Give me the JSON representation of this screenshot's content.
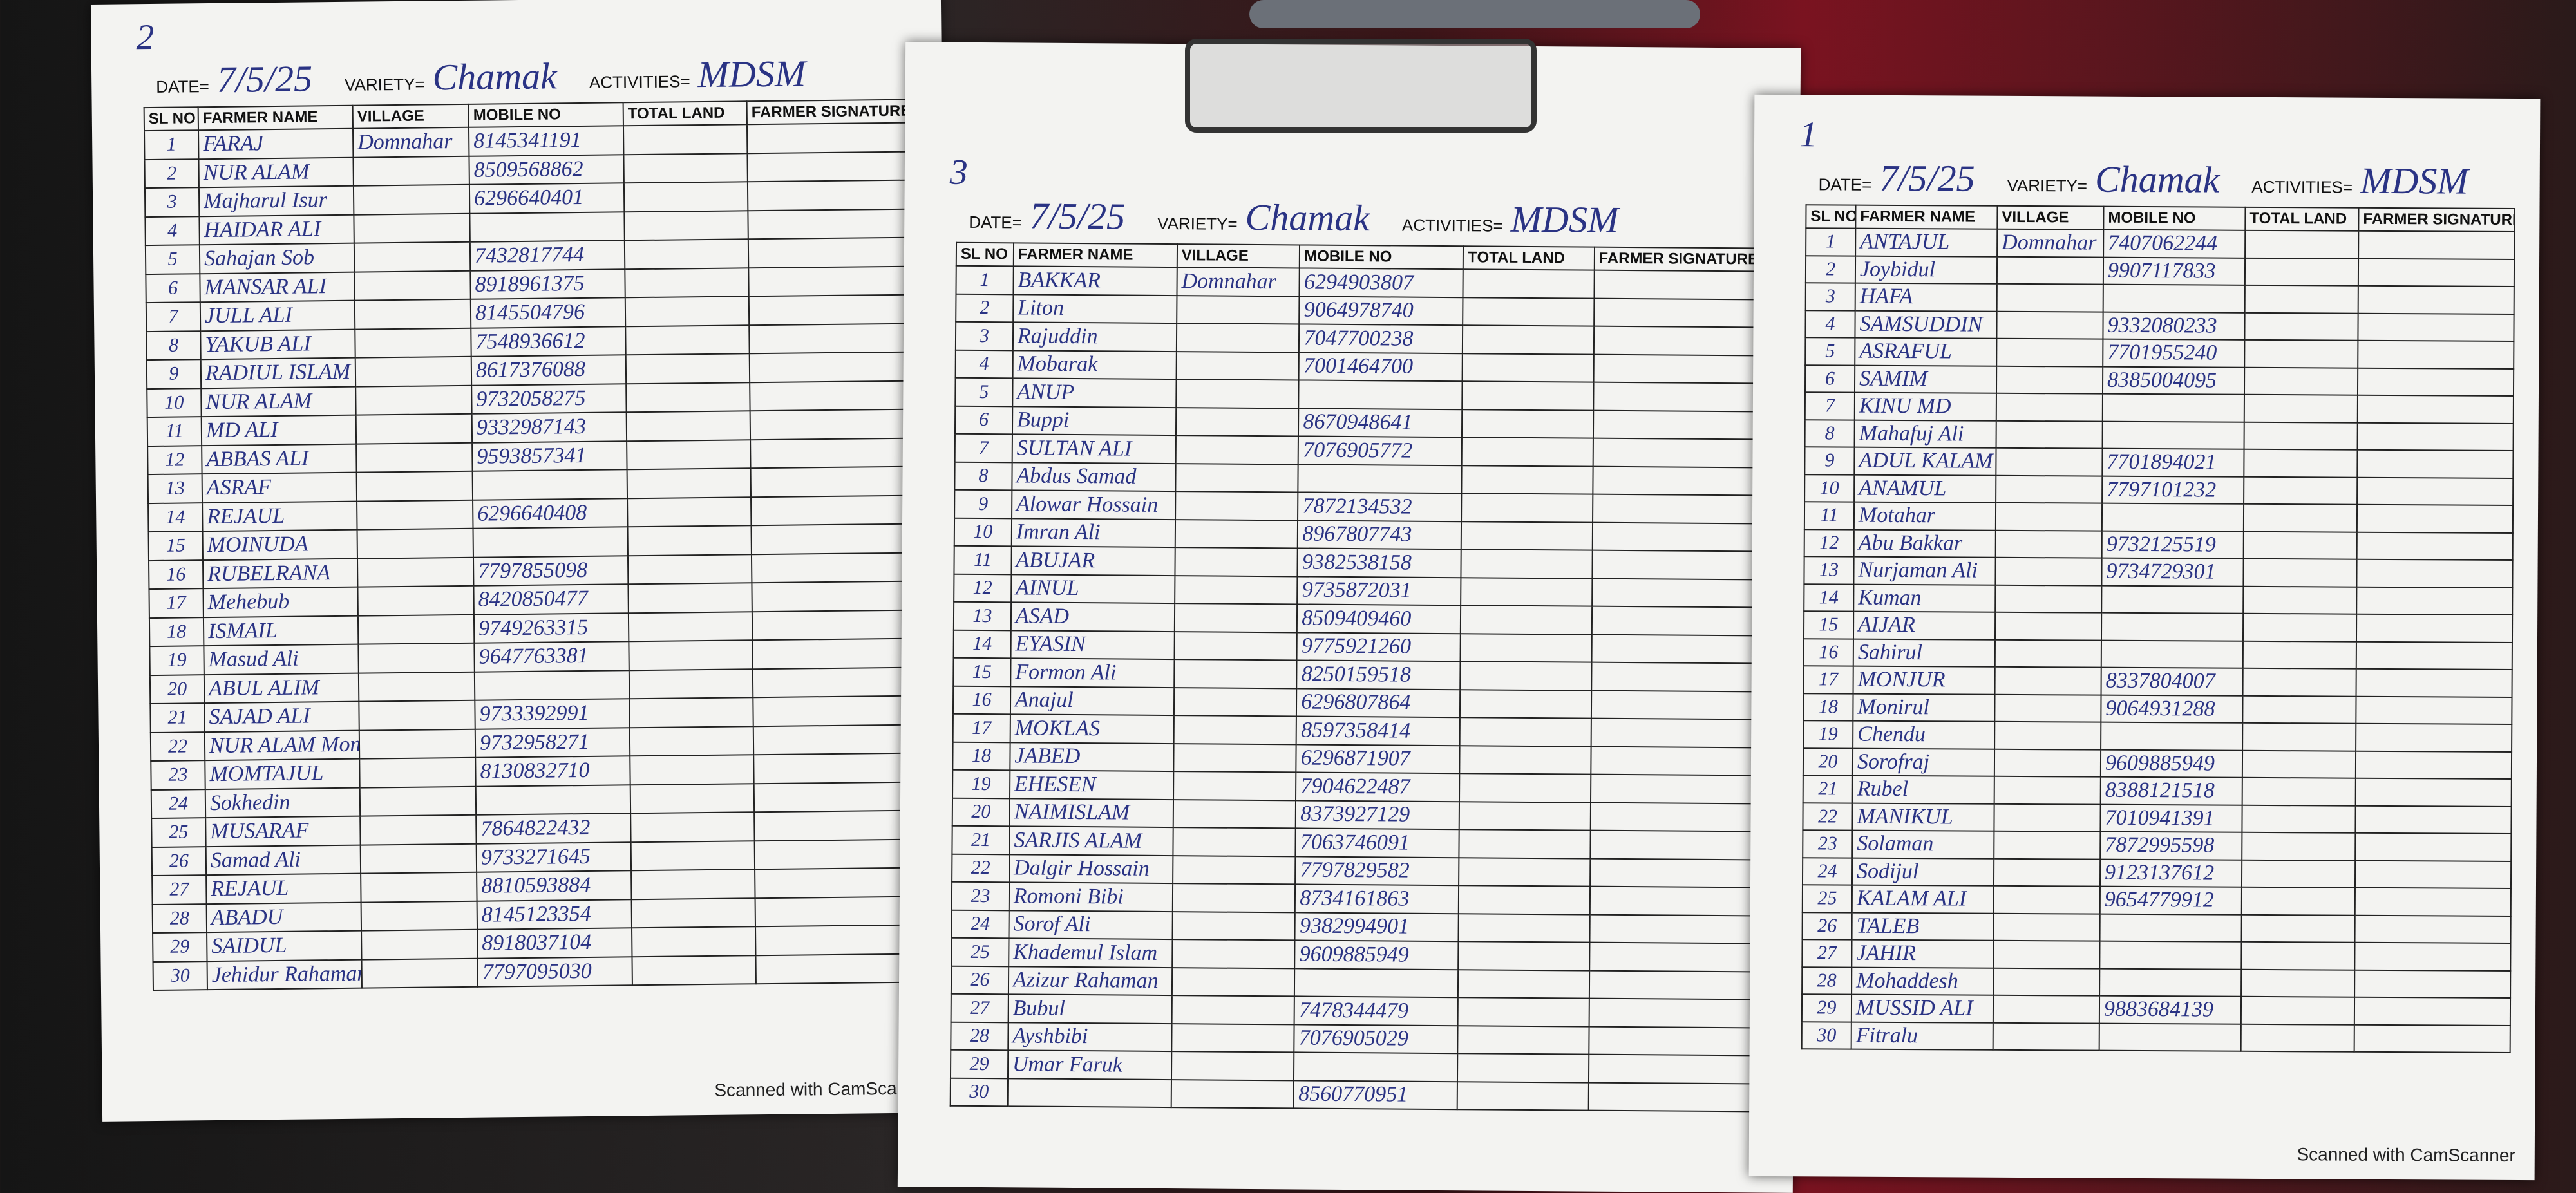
{
  "sheets": [
    {
      "page_mark": "2",
      "date_label": "DATE=",
      "date": "7/5/25",
      "variety_label": "VARIETY=",
      "variety": "Chamak",
      "activities_label": "ACTIVITIES=",
      "activities": "MDSM",
      "columns": [
        "SL NO",
        "FARMER NAME",
        "VILLAGE",
        "MOBILE NO",
        "TOTAL LAND",
        "FARMER SIGNATURE"
      ],
      "rows": [
        {
          "sl": 1,
          "name": "FARAJ",
          "village": "Domnahar",
          "mobile": "8145341191"
        },
        {
          "sl": 2,
          "name": "NUR ALAM",
          "mobile": "8509568862"
        },
        {
          "sl": 3,
          "name": "Majharul Isur",
          "mobile": "6296640401"
        },
        {
          "sl": 4,
          "name": "HAIDAR ALI"
        },
        {
          "sl": 5,
          "name": "Sahajan Sob",
          "mobile": "7432817744"
        },
        {
          "sl": 6,
          "name": "MANSAR ALI",
          "mobile": "8918961375"
        },
        {
          "sl": 7,
          "name": "JULL ALI",
          "mobile": "8145504796"
        },
        {
          "sl": 8,
          "name": "YAKUB ALI",
          "mobile": "7548936612"
        },
        {
          "sl": 9,
          "name": "RADIUL ISLAM",
          "mobile": "8617376088"
        },
        {
          "sl": 10,
          "name": "NUR ALAM",
          "mobile": "9732058275"
        },
        {
          "sl": 11,
          "name": "MD ALI",
          "mobile": "9332987143"
        },
        {
          "sl": 12,
          "name": "ABBAS ALI",
          "mobile": "9593857341"
        },
        {
          "sl": 13,
          "name": "ASRAF"
        },
        {
          "sl": 14,
          "name": "REJAUL",
          "mobile": "6296640408"
        },
        {
          "sl": 15,
          "name": "MOINUDA"
        },
        {
          "sl": 16,
          "name": "RUBELRANA",
          "mobile": "7797855098"
        },
        {
          "sl": 17,
          "name": "Mehebub",
          "mobile": "8420850477"
        },
        {
          "sl": 18,
          "name": "ISMAIL",
          "mobile": "9749263315"
        },
        {
          "sl": 19,
          "name": "Masud Ali",
          "mobile": "9647763381"
        },
        {
          "sl": 20,
          "name": "ABUL ALIM"
        },
        {
          "sl": 21,
          "name": "SAJAD ALI",
          "mobile": "9733392991"
        },
        {
          "sl": 22,
          "name": "NUR ALAM Mon",
          "mobile": "9732958271"
        },
        {
          "sl": 23,
          "name": "MOMTAJUL",
          "mobile": "8130832710"
        },
        {
          "sl": 24,
          "name": "Sokhedin"
        },
        {
          "sl": 25,
          "name": "MUSARAF",
          "mobile": "7864822432"
        },
        {
          "sl": 26,
          "name": "Samad Ali",
          "mobile": "9733271645"
        },
        {
          "sl": 27,
          "name": "REJAUL",
          "mobile": "8810593884"
        },
        {
          "sl": 28,
          "name": "ABADU",
          "mobile": "8145123354"
        },
        {
          "sl": 29,
          "name": "SAIDUL",
          "mobile": "8918037104"
        },
        {
          "sl": 30,
          "name": "Jehidur Rahaman",
          "mobile": "7797095030"
        }
      ],
      "footer": "Scanned with CamScanner"
    },
    {
      "page_mark": "3",
      "date_label": "DATE=",
      "date": "7/5/25",
      "variety_label": "VARIETY=",
      "variety": "Chamak",
      "activities_label": "ACTIVITIES=",
      "activities": "MDSM",
      "columns": [
        "SL NO",
        "FARMER NAME",
        "VILLAGE",
        "MOBILE NO",
        "TOTAL LAND",
        "FARMER SIGNATURE"
      ],
      "rows": [
        {
          "sl": 1,
          "name": "BAKKAR",
          "village": "Domnahar",
          "mobile": "6294903807"
        },
        {
          "sl": 2,
          "name": "Liton",
          "mobile": "9064978740"
        },
        {
          "sl": 3,
          "name": "Rajuddin",
          "mobile": "7047700238"
        },
        {
          "sl": 4,
          "name": "Mobarak",
          "mobile": "7001464700"
        },
        {
          "sl": 5,
          "name": "ANUP"
        },
        {
          "sl": 6,
          "name": "Buppi",
          "mobile": "8670948641"
        },
        {
          "sl": 7,
          "name": "SULTAN ALI",
          "mobile": "7076905772"
        },
        {
          "sl": 8,
          "name": "Abdus Samad"
        },
        {
          "sl": 9,
          "name": "Alowar Hossain",
          "mobile": "7872134532"
        },
        {
          "sl": 10,
          "name": "Imran Ali",
          "mobile": "8967807743"
        },
        {
          "sl": 11,
          "name": "ABUJAR",
          "mobile": "9382538158"
        },
        {
          "sl": 12,
          "name": "AINUL",
          "mobile": "9735872031"
        },
        {
          "sl": 13,
          "name": "ASAD",
          "mobile": "8509409460"
        },
        {
          "sl": 14,
          "name": "EYASIN",
          "mobile": "9775921260"
        },
        {
          "sl": 15,
          "name": "Formon Ali",
          "mobile": "8250159518"
        },
        {
          "sl": 16,
          "name": "Anajul",
          "mobile": "6296807864"
        },
        {
          "sl": 17,
          "name": "MOKLAS",
          "mobile": "8597358414"
        },
        {
          "sl": 18,
          "name": "JABED",
          "mobile": "6296871907"
        },
        {
          "sl": 19,
          "name": "EHESEN",
          "mobile": "7904622487"
        },
        {
          "sl": 20,
          "name": "NAIMISLAM",
          "mobile": "8373927129"
        },
        {
          "sl": 21,
          "name": "SARJIS ALAM",
          "mobile": "7063746091"
        },
        {
          "sl": 22,
          "name": "Dalgir Hossain",
          "mobile": "7797829582"
        },
        {
          "sl": 23,
          "name": "Romoni Bibi",
          "mobile": "8734161863"
        },
        {
          "sl": 24,
          "name": "Sorof Ali",
          "mobile": "9382994901"
        },
        {
          "sl": 25,
          "name": "Khademul Islam",
          "mobile": "9609885949"
        },
        {
          "sl": 26,
          "name": "Azizur Rahaman"
        },
        {
          "sl": 27,
          "name": "Bubul",
          "mobile": "7478344479"
        },
        {
          "sl": 28,
          "name": "Ayshbibi",
          "mobile": "7076905029"
        },
        {
          "sl": 29,
          "name": "Umar Faruk"
        },
        {
          "sl": 30,
          "mobile": "8560770951"
        }
      ]
    },
    {
      "page_mark": "1",
      "date_label": "DATE=",
      "date": "7/5/25",
      "variety_label": "VARIETY=",
      "variety": "Chamak",
      "activities_label": "ACTIVITIES=",
      "activities": "MDSM",
      "columns": [
        "SL NO",
        "FARMER NAME",
        "VILLAGE",
        "MOBILE NO",
        "TOTAL LAND",
        "FARMER SIGNATURE"
      ],
      "rows": [
        {
          "sl": 1,
          "name": "ANTAJUL",
          "village": "Domnahar",
          "mobile": "7407062244"
        },
        {
          "sl": 2,
          "name": "Joybidul",
          "mobile": "9907117833"
        },
        {
          "sl": 3,
          "name": "HAFA"
        },
        {
          "sl": 4,
          "name": "SAMSUDDIN",
          "mobile": "9332080233"
        },
        {
          "sl": 5,
          "name": "ASRAFUL",
          "mobile": "7701955240"
        },
        {
          "sl": 6,
          "name": "SAMIM",
          "mobile": "8385004095"
        },
        {
          "sl": 7,
          "name": "KINU MD"
        },
        {
          "sl": 8,
          "name": "Mahafuj Ali"
        },
        {
          "sl": 9,
          "name": "ADUL KALAM",
          "mobile": "7701894021"
        },
        {
          "sl": 10,
          "name": "ANAMUL",
          "mobile": "7797101232"
        },
        {
          "sl": 11,
          "name": "Motahar"
        },
        {
          "sl": 12,
          "name": "Abu Bakkar",
          "mobile": "9732125519"
        },
        {
          "sl": 13,
          "name": "Nurjaman Ali",
          "mobile": "9734729301"
        },
        {
          "sl": 14,
          "name": "Kuman"
        },
        {
          "sl": 15,
          "name": "AIJAR"
        },
        {
          "sl": 16,
          "name": "Sahirul"
        },
        {
          "sl": 17,
          "name": "MONJUR",
          "mobile": "8337804007"
        },
        {
          "sl": 18,
          "name": "Monirul",
          "mobile": "9064931288"
        },
        {
          "sl": 19,
          "name": "Chendu"
        },
        {
          "sl": 20,
          "name": "Sorofraj",
          "mobile": "9609885949"
        },
        {
          "sl": 21,
          "name": "Rubel",
          "mobile": "8388121518"
        },
        {
          "sl": 22,
          "name": "MANIKUL",
          "mobile": "7010941391"
        },
        {
          "sl": 23,
          "name": "Solaman",
          "mobile": "7872995598"
        },
        {
          "sl": 24,
          "name": "Sodijul",
          "mobile": "9123137612"
        },
        {
          "sl": 25,
          "name": "KALAM ALI",
          "mobile": "9654779912"
        },
        {
          "sl": 26,
          "name": "TALEB"
        },
        {
          "sl": 27,
          "name": "JAHIR"
        },
        {
          "sl": 28,
          "name": "Mohaddesh"
        },
        {
          "sl": 29,
          "name": "MUSSID ALI",
          "mobile": "9883684139"
        },
        {
          "sl": 30,
          "name": "Fitralu"
        }
      ],
      "footer": "Scanned with CamScanner"
    }
  ]
}
